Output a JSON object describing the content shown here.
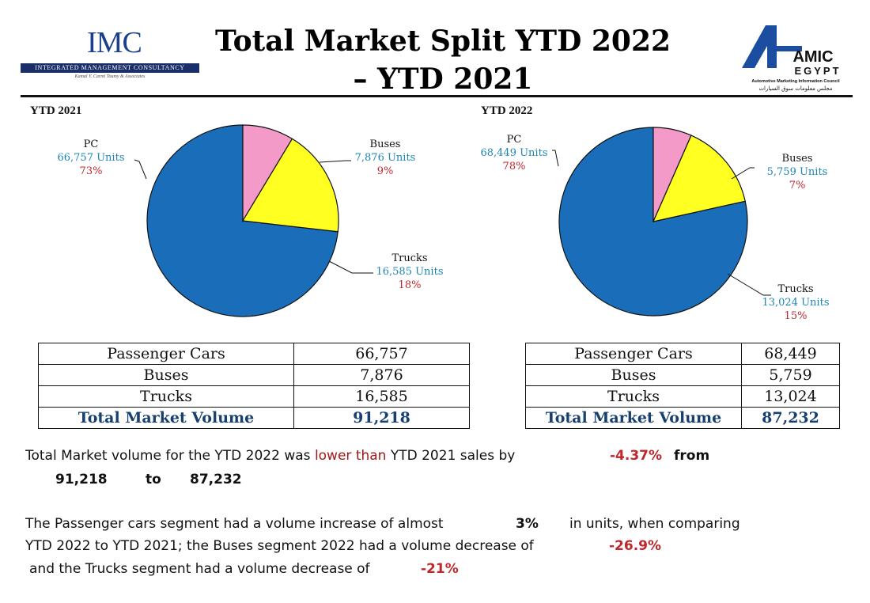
{
  "header": {
    "imc_logo": {
      "name": "IMC",
      "band_text": "INTEGRATED MANAGEMENT CONSULTANCY",
      "tagline": "Kamal Y. Carmi Toumy & Associates"
    },
    "title_line1": "Total Market Split YTD 2022",
    "title_line2": "– YTD 2021",
    "amic_logo": {
      "word1": "AMIC",
      "word2": "EGYPT",
      "caption": "Automotive Marketing Information Council",
      "caption_ar": "مجلس معلومات سوق السيارات"
    }
  },
  "colors": {
    "pc": "#1a6db8",
    "buses": "#f39ac8",
    "trucks": "#ffff22",
    "units_text": "#1c86b4",
    "pct_text": "#c0272d",
    "total_text": "#17406e"
  },
  "chart_data": [
    {
      "type": "pie",
      "title": "YTD 2021",
      "labels": [
        "PC",
        "Buses",
        "Trucks"
      ],
      "values": [
        66757,
        7876,
        16585
      ],
      "value_labels": [
        "66,757 Units",
        "7,876 Units",
        "16,585 Units"
      ],
      "percent_labels": [
        "73%",
        "9%",
        "18%"
      ]
    },
    {
      "type": "pie",
      "title": "YTD 2022",
      "labels": [
        "PC",
        "Buses",
        "Trucks"
      ],
      "values": [
        68449,
        5759,
        13024
      ],
      "value_labels": [
        "68,449 Units",
        "5,759 Units",
        "13,024 Units"
      ],
      "percent_labels": [
        "78%",
        "7%",
        "15%"
      ]
    }
  ],
  "tables": {
    "ytd2021": {
      "rows": [
        {
          "label": "Passenger Cars",
          "value": "66,757"
        },
        {
          "label": "Buses",
          "value": "7,876"
        },
        {
          "label": "Trucks",
          "value": "16,585"
        }
      ],
      "total": {
        "label": "Total Market Volume",
        "value": "91,218"
      }
    },
    "ytd2022": {
      "rows": [
        {
          "label": "Passenger Cars",
          "value": "68,449"
        },
        {
          "label": "Buses",
          "value": "5,759"
        },
        {
          "label": "Trucks",
          "value": "13,024"
        }
      ],
      "total": {
        "label": "Total Market Volume",
        "value": "87,232"
      }
    }
  },
  "commentary": {
    "p1": {
      "text_a": "Total Market volume for the YTD 2022 was ",
      "text_lower": "lower than",
      "text_b": " YTD 2021 sales by",
      "pct": "-4.37%",
      "from": "from",
      "v1": "91,218",
      "to": "to",
      "v2": "87,232"
    },
    "p2": {
      "line1a": "The Passenger cars segment had a volume increase of almost",
      "pc_pct": "3%",
      "line1b": "in units, when comparing",
      "line2a": "YTD 2022 to YTD 2021; the Buses segment 2022  had a volume decrease of",
      "bus_pct": "-26.9%",
      "line3a": "and the Trucks segment had a volume decrease of",
      "truck_pct": "-21%"
    }
  }
}
